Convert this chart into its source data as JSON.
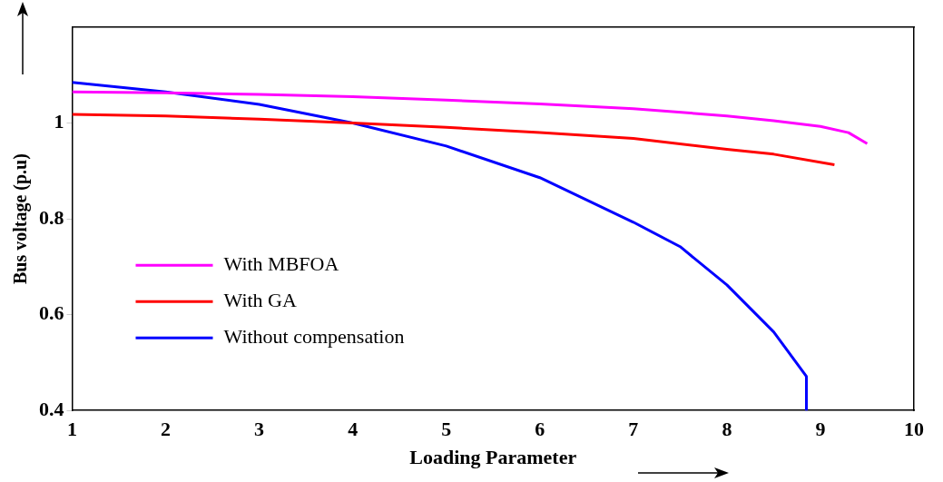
{
  "chart_data": {
    "type": "line",
    "xlabel": "Loading Parameter",
    "ylabel": "Bus voltage (p.u)",
    "xlim": [
      1,
      10
    ],
    "xticks": [
      1,
      2,
      3,
      4,
      5,
      6,
      7,
      8,
      9,
      10
    ],
    "ylim": [
      0.4,
      1.2
    ],
    "yticks": [
      0.4,
      0.6,
      0.8,
      1
    ],
    "grid": false,
    "legend": "bottom left",
    "line_style": "solid",
    "marker": "none",
    "series": [
      {
        "name": "With MBFOA",
        "color": "#ff00ff",
        "x": [
          1,
          2,
          3,
          4,
          5,
          6,
          7,
          8,
          8.5,
          9,
          9.3,
          9.5
        ],
        "values": [
          1.065,
          1.063,
          1.06,
          1.055,
          1.048,
          1.04,
          1.03,
          1.015,
          1.005,
          0.993,
          0.98,
          0.957
        ]
      },
      {
        "name": "With GA",
        "color": "#ff0000",
        "x": [
          1,
          2,
          3,
          4,
          5,
          6,
          7,
          8,
          8.5,
          9.15
        ],
        "values": [
          1.018,
          1.015,
          1.008,
          1.0,
          0.991,
          0.98,
          0.968,
          0.945,
          0.935,
          0.913
        ]
      },
      {
        "name": "Without compensation",
        "color": "#0000ff",
        "x": [
          1,
          2,
          3,
          4,
          5,
          6,
          7,
          7.5,
          8,
          8.5,
          8.85,
          8.85
        ],
        "values": [
          1.085,
          1.065,
          1.039,
          1.0,
          0.952,
          0.886,
          0.793,
          0.742,
          0.662,
          0.564,
          0.471,
          0.4
        ]
      }
    ]
  }
}
